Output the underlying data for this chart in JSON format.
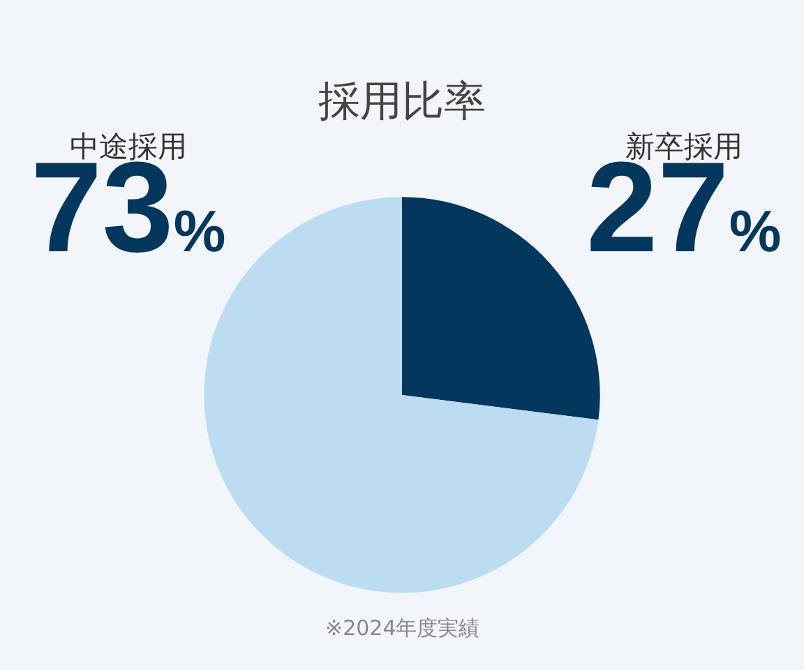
{
  "chart_data": {
    "type": "pie",
    "title": "採用比率",
    "categories": [
      "新卒採用",
      "中途採用"
    ],
    "values": [
      27,
      73
    ],
    "value_labels": [
      "27%",
      "73%"
    ],
    "colors": [
      "#04375e",
      "#bcdcf1"
    ],
    "annotations": [
      "※2024年度実績"
    ],
    "legend": false
  }
}
